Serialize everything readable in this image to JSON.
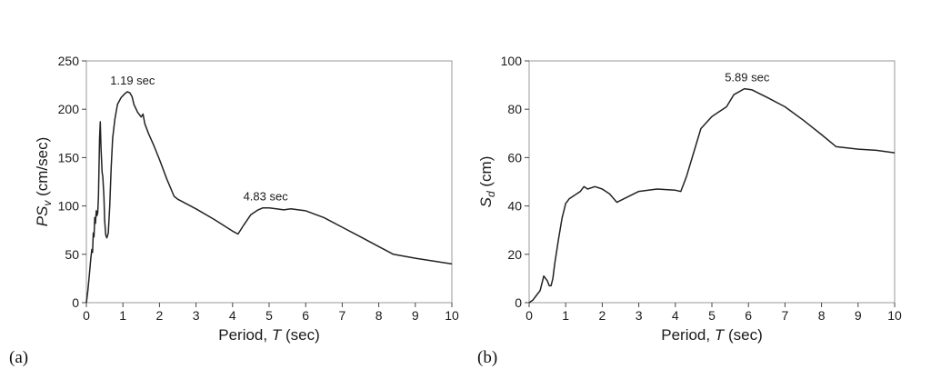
{
  "panels": [
    {
      "label": "(a)"
    },
    {
      "label": "(b)"
    }
  ],
  "chart_data": [
    {
      "type": "line",
      "ylabel": "PS_v (cm/sec)",
      "xlabel": "Period, T (sec)",
      "xlim": [
        0,
        10
      ],
      "ylim": [
        0,
        250
      ],
      "xticks": [
        0,
        1,
        2,
        3,
        4,
        5,
        6,
        7,
        8,
        9,
        10
      ],
      "yticks": [
        0,
        50,
        100,
        150,
        200,
        250
      ],
      "grid": false,
      "line_color": "#222222",
      "series": [
        {
          "x": [
            0,
            0.04,
            0.08,
            0.12,
            0.15,
            0.17,
            0.19,
            0.21,
            0.23,
            0.25,
            0.27,
            0.29,
            0.31,
            0.33,
            0.36,
            0.38,
            0.4,
            0.43,
            0.45,
            0.48,
            0.5,
            0.53,
            0.56,
            0.6,
            0.64,
            0.68,
            0.72,
            0.78,
            0.85,
            0.95,
            1.05,
            1.12,
            1.19,
            1.25,
            1.3,
            1.4,
            1.5,
            1.55,
            1.6,
            1.7,
            1.85,
            2.0,
            2.2,
            2.4,
            2.5,
            3.0,
            3.5,
            4.0,
            4.15,
            4.3,
            4.5,
            4.7,
            4.83,
            5.0,
            5.2,
            5.4,
            5.6,
            5.8,
            6.0,
            6.5,
            7.0,
            7.5,
            8.0,
            8.4,
            9.0,
            9.5,
            10.0
          ],
          "y": [
            0,
            12,
            28,
            45,
            55,
            52,
            72,
            68,
            88,
            82,
            95,
            90,
            93,
            110,
            170,
            187,
            160,
            135,
            130,
            110,
            85,
            70,
            67,
            72,
            100,
            140,
            170,
            190,
            205,
            212,
            216,
            218,
            217,
            213,
            205,
            197,
            192,
            195,
            185,
            175,
            162,
            148,
            128,
            110,
            107,
            97,
            86,
            74,
            71,
            80,
            91,
            96,
            98,
            98,
            97,
            96,
            97,
            96,
            95,
            88,
            78,
            68,
            58,
            50,
            46,
            43,
            40
          ]
        }
      ],
      "annotations": [
        {
          "text": "1.19 sec",
          "x": 1.19,
          "y": 218
        },
        {
          "text": "4.83 sec",
          "x": 4.83,
          "y": 98
        }
      ]
    },
    {
      "type": "line",
      "ylabel": "S_d (cm)",
      "xlabel": "Period, T (sec)",
      "xlim": [
        0,
        10
      ],
      "ylim": [
        0,
        100
      ],
      "xticks": [
        0,
        1,
        2,
        3,
        4,
        5,
        6,
        7,
        8,
        9,
        10
      ],
      "yticks": [
        0,
        20,
        40,
        60,
        80,
        100
      ],
      "grid": false,
      "line_color": "#222222",
      "series": [
        {
          "x": [
            0,
            0.1,
            0.2,
            0.3,
            0.35,
            0.4,
            0.45,
            0.5,
            0.55,
            0.6,
            0.65,
            0.7,
            0.8,
            0.9,
            1.0,
            1.1,
            1.2,
            1.4,
            1.5,
            1.6,
            1.8,
            2.0,
            2.2,
            2.4,
            2.6,
            3.0,
            3.5,
            4.0,
            4.15,
            4.3,
            4.5,
            4.7,
            5.0,
            5.2,
            5.4,
            5.6,
            5.89,
            6.1,
            6.5,
            7.0,
            7.5,
            8.0,
            8.4,
            9.0,
            9.5,
            10.0
          ],
          "y": [
            0,
            1,
            3,
            5,
            8,
            11,
            10,
            9,
            7,
            7,
            10,
            16,
            26,
            35,
            41,
            43,
            44,
            46,
            48,
            47,
            48,
            47,
            45,
            41.5,
            43,
            46,
            47,
            46.5,
            46,
            52,
            62,
            72,
            77,
            79,
            81,
            86,
            88.5,
            88,
            85,
            81,
            75.5,
            69.5,
            64.5,
            63.5,
            63,
            62
          ]
        }
      ],
      "annotations": [
        {
          "text": "5.89 sec",
          "x": 5.89,
          "y": 88.5
        }
      ]
    }
  ]
}
